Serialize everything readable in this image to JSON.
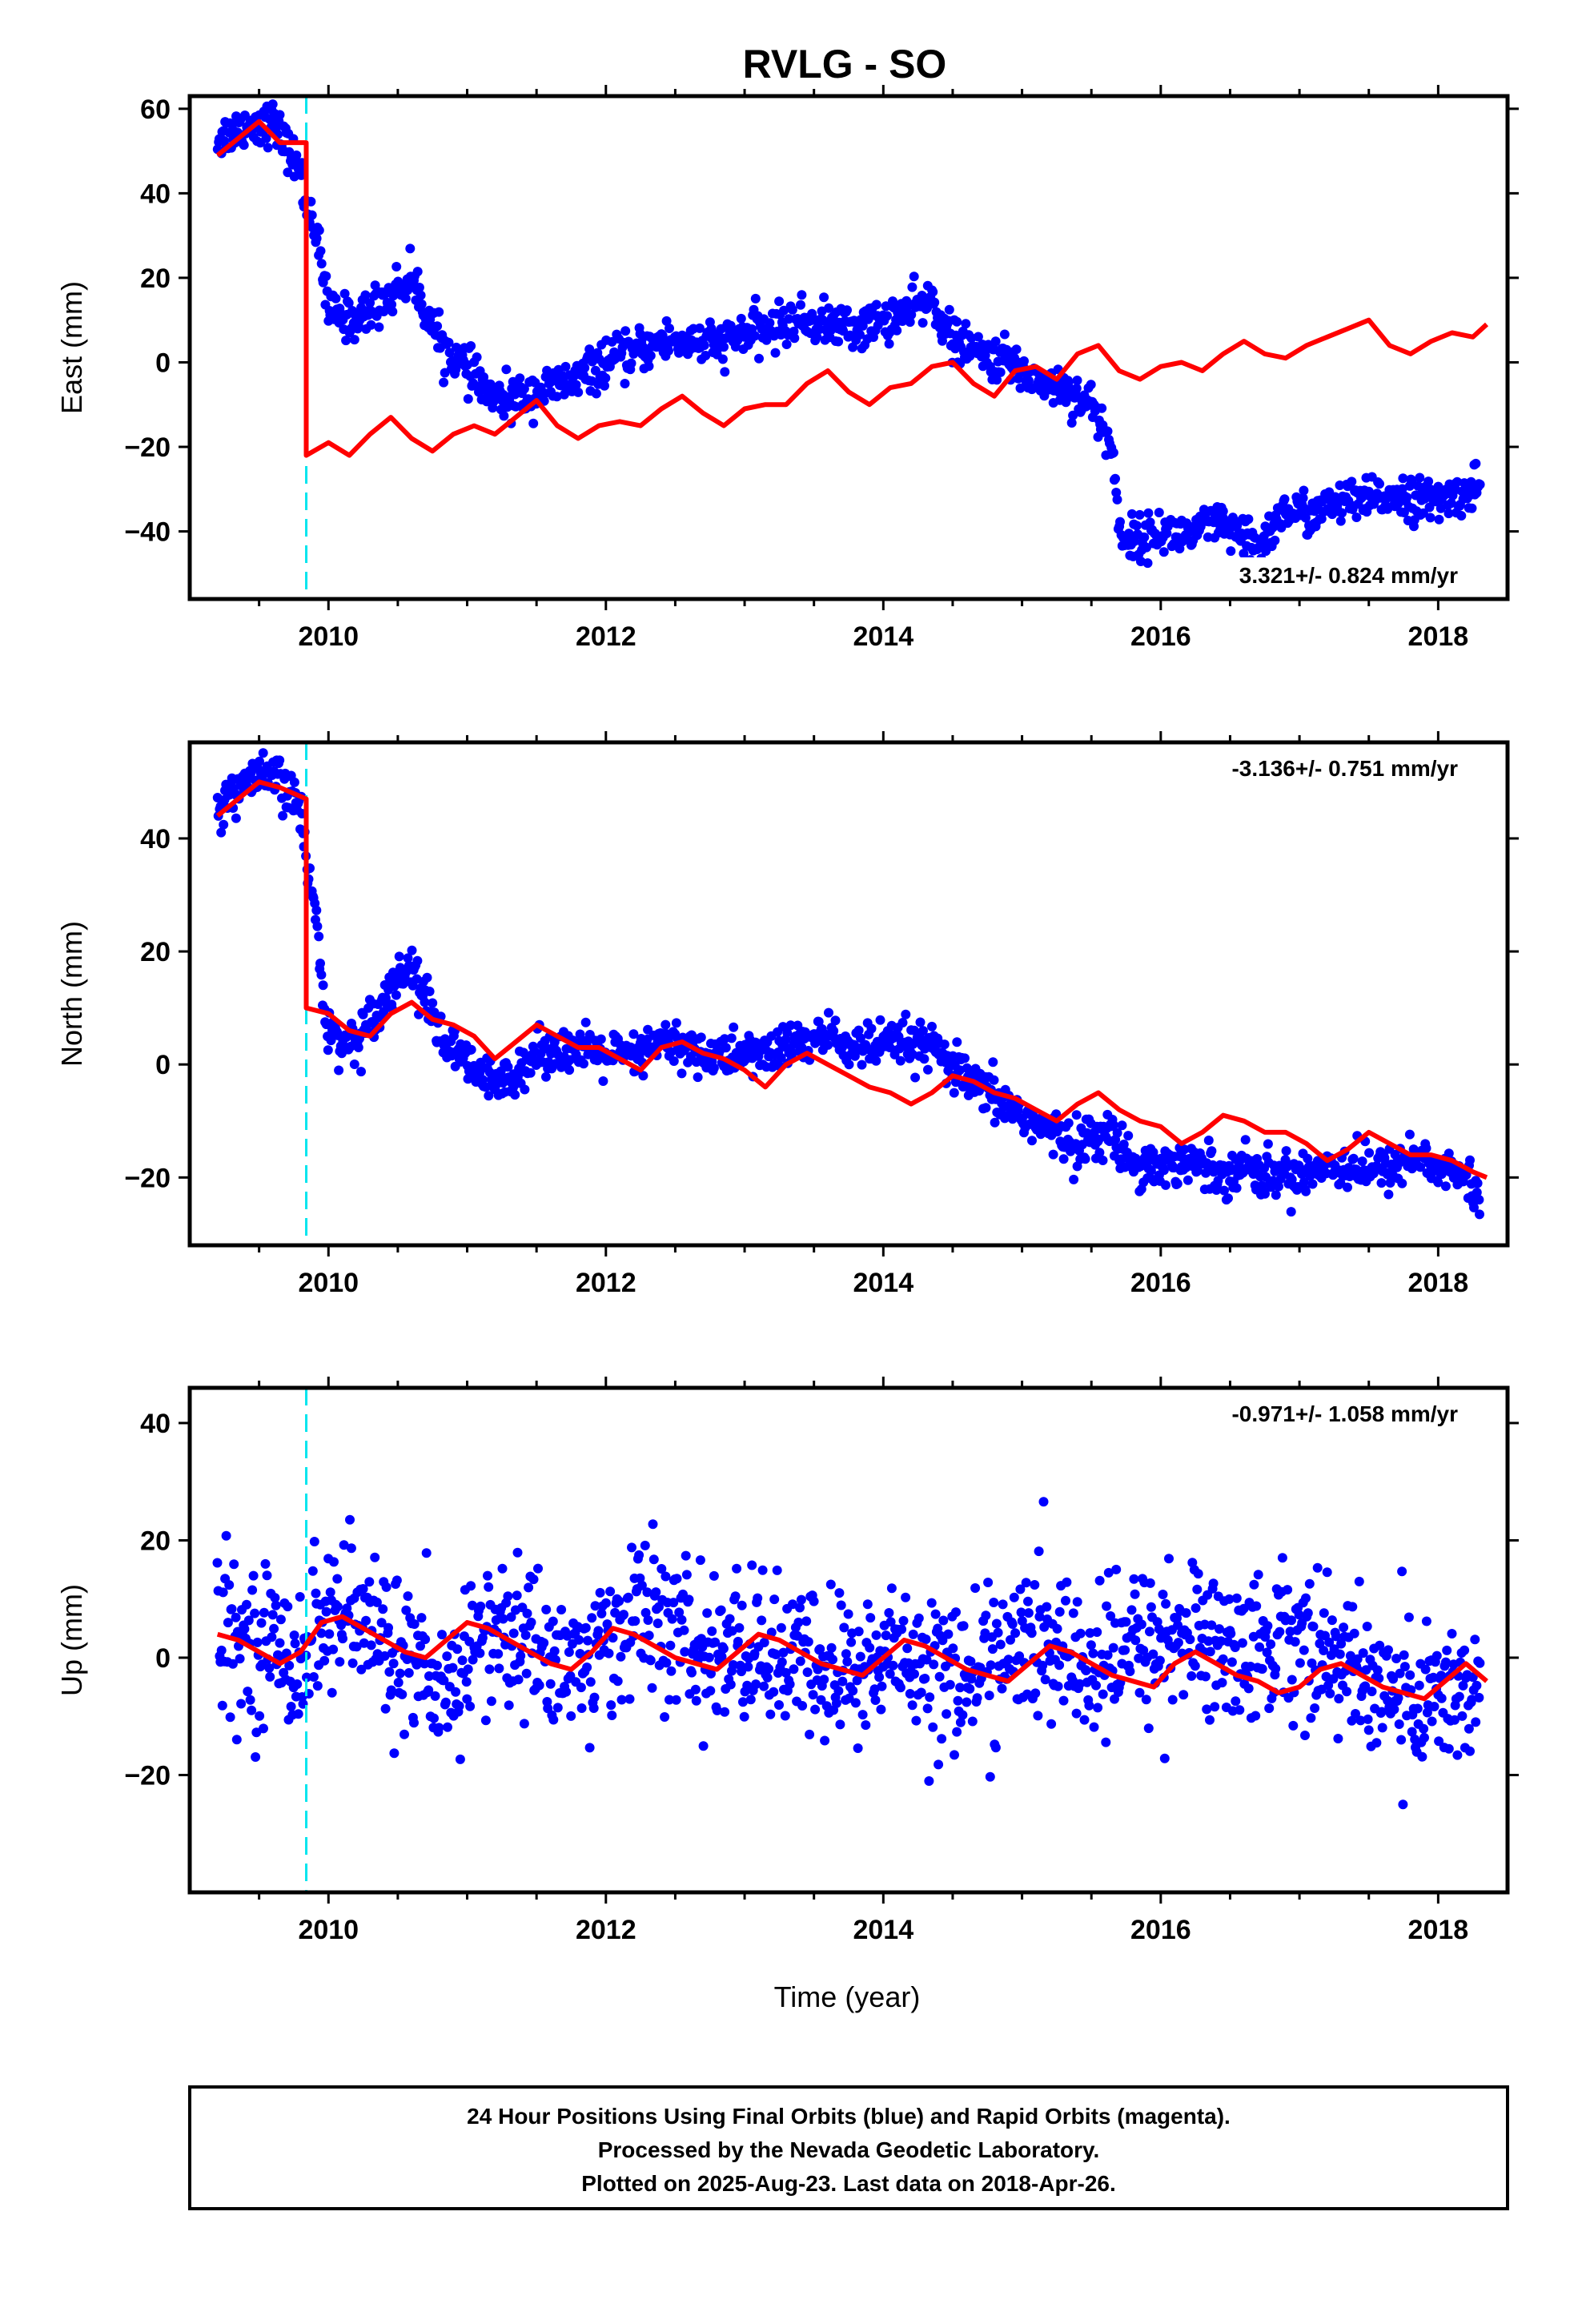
{
  "title": "RVLG - SO",
  "xlabel": "Time (year)",
  "footer": {
    "lines": [
      "24 Hour Positions Using Final Orbits (blue) and Rapid Orbits (magenta).",
      "Processed by the Nevada Geodetic Laboratory.",
      "Plotted on 2025-Aug-23. Last data on 2018-Apr-26."
    ]
  },
  "colors": {
    "final_orbits": "#0000ff",
    "model": "#ff0000",
    "offset_marker": "#00e5ee",
    "frame": "#000000"
  },
  "chart_data": [
    {
      "type": "scatter",
      "ylabel": "East (mm)",
      "xlim": [
        2009.0,
        2018.5
      ],
      "ylim": [
        -56,
        63
      ],
      "xticks": [
        2010,
        2012,
        2014,
        2016,
        2018
      ],
      "yticks": [
        -40,
        -20,
        0,
        20,
        40,
        60
      ],
      "rate_label": "3.321+/- 0.824 mm/yr",
      "rate_position": "bottom-right",
      "offset_marker_x": 2009.84,
      "series": [
        {
          "kind": "scatter",
          "x": [
            2009.2,
            2009.4,
            2009.6,
            2009.8,
            2009.83,
            2009.9,
            2010.0,
            2010.2,
            2010.4,
            2010.6,
            2010.8,
            2011.0,
            2011.2,
            2011.4,
            2011.6,
            2011.8,
            2012.0,
            2012.2,
            2012.4,
            2012.6,
            2012.8,
            2013.0,
            2013.2,
            2013.4,
            2013.6,
            2013.8,
            2014.0,
            2014.2,
            2014.35,
            2014.5,
            2014.7,
            2014.9,
            2015.1,
            2015.3,
            2015.5,
            2015.65,
            2015.7,
            2015.8,
            2016.0,
            2016.2,
            2016.4,
            2016.6,
            2016.7,
            2016.9,
            2017.1,
            2017.3,
            2017.5,
            2017.7,
            2017.9,
            2018.1,
            2018.3
          ],
          "y": [
            53,
            56,
            57,
            45,
            38,
            33,
            12,
            10,
            15,
            20,
            5,
            -2,
            -9,
            -8,
            -6,
            -4,
            0,
            2,
            5,
            5,
            4,
            7,
            8,
            10,
            9,
            8,
            10,
            12,
            15,
            5,
            2,
            0,
            -4,
            -6,
            -10,
            -20,
            -40,
            -42,
            -40,
            -41,
            -38,
            -42,
            -44,
            -35,
            -36,
            -33,
            -33,
            -31,
            -33,
            -32,
            -29
          ],
          "spread": 2.5
        },
        {
          "kind": "line",
          "name": "model",
          "x": [
            2009.2,
            2009.35,
            2009.5,
            2009.65,
            2009.84,
            2009.84,
            2010.0,
            2010.15,
            2010.3,
            2010.45,
            2010.6,
            2010.75,
            2010.9,
            2011.05,
            2011.2,
            2011.35,
            2011.5,
            2011.65,
            2011.8,
            2011.95,
            2012.1,
            2012.25,
            2012.4,
            2012.55,
            2012.7,
            2012.85,
            2013.0,
            2013.15,
            2013.3,
            2013.45,
            2013.6,
            2013.75,
            2013.9,
            2014.05,
            2014.2,
            2014.35,
            2014.5,
            2014.65,
            2014.8,
            2014.95,
            2015.1,
            2015.25,
            2015.4,
            2015.55,
            2015.7,
            2015.85,
            2016.0,
            2016.15,
            2016.3,
            2016.45,
            2016.6,
            2016.75,
            2016.9,
            2017.05,
            2017.2,
            2017.35,
            2017.5,
            2017.65,
            2017.8,
            2017.95,
            2018.1,
            2018.25,
            2018.35
          ],
          "y": [
            49,
            53,
            57,
            52,
            52,
            -22,
            -19,
            -22,
            -17,
            -13,
            -18,
            -21,
            -17,
            -15,
            -17,
            -13,
            -9,
            -15,
            -18,
            -15,
            -14,
            -15,
            -11,
            -8,
            -12,
            -15,
            -11,
            -10,
            -10,
            -5,
            -2,
            -7,
            -10,
            -6,
            -5,
            -1,
            0,
            -5,
            -8,
            -2,
            -1,
            -4,
            2,
            4,
            -2,
            -4,
            -1,
            0,
            -2,
            2,
            5,
            2,
            1,
            4,
            6,
            8,
            10,
            4,
            2,
            5,
            7,
            6,
            9
          ]
        }
      ]
    },
    {
      "type": "scatter",
      "ylabel": "North (mm)",
      "xlim": [
        2009.0,
        2018.5
      ],
      "ylim": [
        -32,
        57
      ],
      "xticks": [
        2010,
        2012,
        2014,
        2016,
        2018
      ],
      "yticks": [
        -20,
        0,
        20,
        40
      ],
      "rate_label": "-3.136+/- 0.751 mm/yr",
      "rate_position": "top-right",
      "offset_marker_x": 2009.84,
      "series": [
        {
          "kind": "scatter",
          "x": [
            2009.2,
            2009.4,
            2009.6,
            2009.8,
            2009.84,
            2009.9,
            2010.0,
            2010.2,
            2010.4,
            2010.6,
            2010.8,
            2011.0,
            2011.2,
            2011.4,
            2011.6,
            2011.8,
            2012.0,
            2012.2,
            2012.4,
            2012.6,
            2012.8,
            2013.0,
            2013.2,
            2013.4,
            2013.6,
            2013.8,
            2014.0,
            2014.2,
            2014.4,
            2014.6,
            2014.8,
            2015.0,
            2015.2,
            2015.4,
            2015.6,
            2015.8,
            2016.0,
            2016.2,
            2016.4,
            2016.6,
            2016.8,
            2017.0,
            2017.2,
            2017.4,
            2017.6,
            2017.8,
            2018.0,
            2018.2,
            2018.3
          ],
          "y": [
            45,
            50,
            51,
            46,
            35,
            28,
            5,
            4,
            12,
            18,
            5,
            0,
            -4,
            0,
            3,
            2,
            2,
            1,
            4,
            3,
            1,
            2,
            2,
            4,
            5,
            3,
            3,
            4,
            2,
            -3,
            -6,
            -9,
            -12,
            -14,
            -12,
            -17,
            -18,
            -17,
            -19,
            -18,
            -20,
            -19,
            -18,
            -18,
            -19,
            -16,
            -18,
            -20,
            -24
          ],
          "spread": 2.0
        },
        {
          "kind": "line",
          "name": "model",
          "x": [
            2009.2,
            2009.35,
            2009.5,
            2009.65,
            2009.84,
            2009.84,
            2010.0,
            2010.15,
            2010.3,
            2010.45,
            2010.6,
            2010.75,
            2010.9,
            2011.05,
            2011.2,
            2011.35,
            2011.5,
            2011.65,
            2011.8,
            2011.95,
            2012.1,
            2012.25,
            2012.4,
            2012.55,
            2012.7,
            2012.85,
            2013.0,
            2013.15,
            2013.3,
            2013.45,
            2013.6,
            2013.75,
            2013.9,
            2014.05,
            2014.2,
            2014.35,
            2014.5,
            2014.65,
            2014.8,
            2014.95,
            2015.1,
            2015.25,
            2015.4,
            2015.55,
            2015.7,
            2015.85,
            2016.0,
            2016.15,
            2016.3,
            2016.45,
            2016.6,
            2016.75,
            2016.9,
            2017.05,
            2017.2,
            2017.35,
            2017.5,
            2017.65,
            2017.8,
            2017.95,
            2018.1,
            2018.25,
            2018.35
          ],
          "y": [
            44,
            47,
            50,
            49,
            47,
            10,
            9,
            6,
            5,
            9,
            11,
            8,
            7,
            5,
            1,
            4,
            7,
            5,
            3,
            3,
            1,
            -1,
            3,
            4,
            2,
            1,
            -1,
            -4,
            0,
            2,
            0,
            -2,
            -4,
            -5,
            -7,
            -5,
            -2,
            -3,
            -5,
            -6,
            -8,
            -10,
            -7,
            -5,
            -8,
            -10,
            -11,
            -14,
            -12,
            -9,
            -10,
            -12,
            -12,
            -14,
            -17,
            -15,
            -12,
            -14,
            -16,
            -16,
            -17,
            -19,
            -20
          ]
        }
      ]
    },
    {
      "type": "scatter",
      "ylabel": "Up (mm)",
      "xlim": [
        2009.0,
        2018.5
      ],
      "ylim": [
        -40,
        46
      ],
      "xticks": [
        2010,
        2012,
        2014,
        2016,
        2018
      ],
      "yticks": [
        -20,
        0,
        20,
        40
      ],
      "rate_label": "-0.971+/- 1.058 mm/yr",
      "rate_position": "top-right",
      "offset_marker_x": 2009.84,
      "series": [
        {
          "kind": "scatter",
          "x": [
            2009.2,
            2009.4,
            2009.6,
            2009.8,
            2010.0,
            2010.2,
            2010.4,
            2010.6,
            2010.8,
            2011.0,
            2011.2,
            2011.4,
            2011.6,
            2011.8,
            2012.0,
            2012.2,
            2012.4,
            2012.6,
            2012.8,
            2013.0,
            2013.2,
            2013.4,
            2013.6,
            2013.8,
            2014.0,
            2014.2,
            2014.4,
            2014.6,
            2014.8,
            2015.0,
            2015.2,
            2015.4,
            2015.6,
            2015.8,
            2016.0,
            2016.2,
            2016.4,
            2016.6,
            2016.8,
            2017.0,
            2017.2,
            2017.4,
            2017.6,
            2017.8,
            2018.0,
            2018.2,
            2018.3
          ],
          "y": [
            4,
            3,
            2,
            0,
            8,
            6,
            3,
            0,
            -10,
            2,
            4,
            3,
            1,
            -2,
            2,
            8,
            6,
            2,
            0,
            2,
            0,
            -1,
            -2,
            -3,
            0,
            1,
            -2,
            -4,
            0,
            2,
            2,
            0,
            -3,
            3,
            3,
            4,
            2,
            1,
            3,
            4,
            1,
            -3,
            -4,
            -8,
            -6,
            -6,
            -7
          ],
          "spread": 6.5
        },
        {
          "kind": "line",
          "name": "model",
          "x": [
            2009.2,
            2009.35,
            2009.5,
            2009.65,
            2009.8,
            2009.95,
            2010.1,
            2010.25,
            2010.4,
            2010.55,
            2010.7,
            2010.85,
            2011.0,
            2011.15,
            2011.3,
            2011.45,
            2011.6,
            2011.75,
            2011.9,
            2012.05,
            2012.2,
            2012.35,
            2012.5,
            2012.65,
            2012.8,
            2012.95,
            2013.1,
            2013.25,
            2013.4,
            2013.55,
            2013.7,
            2013.85,
            2014.0,
            2014.15,
            2014.3,
            2014.45,
            2014.6,
            2014.75,
            2014.9,
            2015.05,
            2015.2,
            2015.35,
            2015.5,
            2015.65,
            2015.8,
            2015.95,
            2016.1,
            2016.25,
            2016.4,
            2016.55,
            2016.7,
            2016.85,
            2017.0,
            2017.15,
            2017.3,
            2017.45,
            2017.6,
            2017.75,
            2017.9,
            2018.05,
            2018.2,
            2018.35
          ],
          "y": [
            4,
            3,
            1,
            -1,
            1,
            6,
            7,
            5,
            3,
            1,
            0,
            3,
            6,
            5,
            3,
            1,
            -1,
            -2,
            1,
            5,
            4,
            2,
            0,
            -1,
            -2,
            1,
            4,
            3,
            1,
            -1,
            -2,
            -3,
            0,
            3,
            2,
            0,
            -2,
            -3,
            -4,
            -1,
            2,
            1,
            -1,
            -3,
            -4,
            -5,
            -1,
            1,
            -1,
            -3,
            -4,
            -6,
            -5,
            -2,
            -1,
            -3,
            -5,
            -6,
            -7,
            -4,
            -1,
            -4
          ]
        }
      ]
    }
  ]
}
